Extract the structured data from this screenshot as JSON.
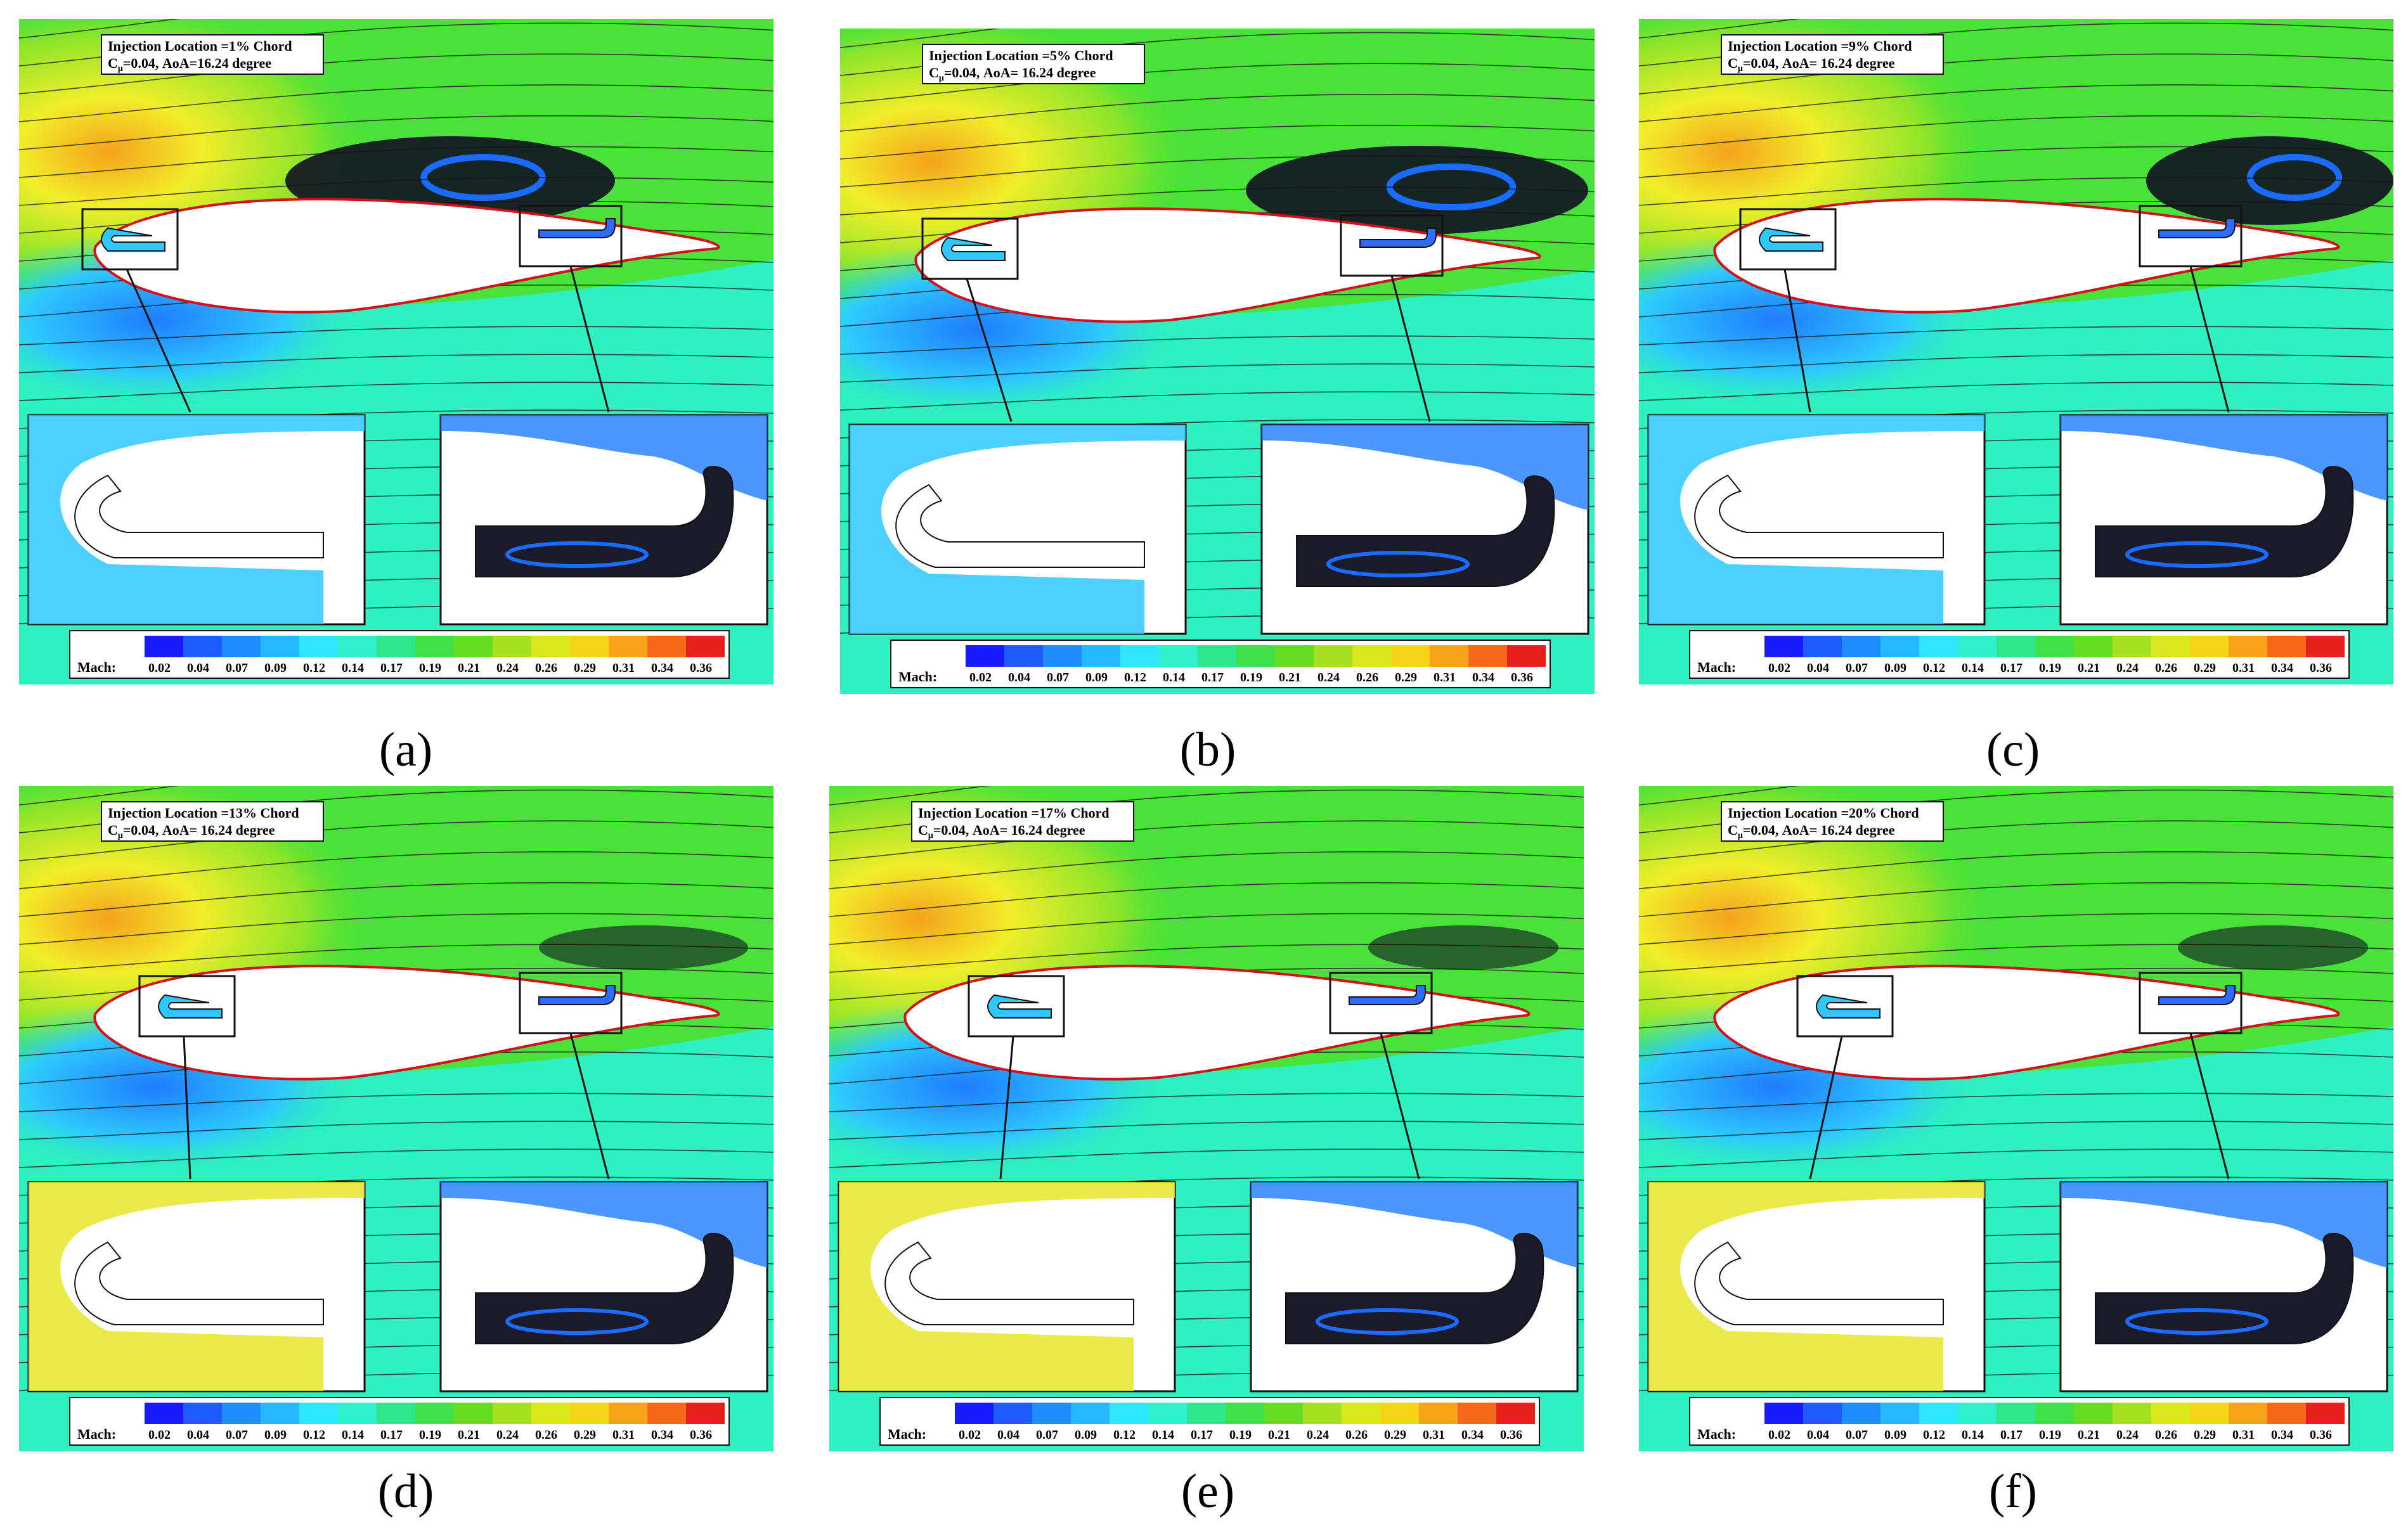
{
  "panels": [
    {
      "id": "a",
      "label": "(a)",
      "title": "Injection Location =1% Chord",
      "subtitle_prefix": "C",
      "subtitle_sub": "μ",
      "subtitle_rest": "=0.04, AoA=16.24 degree",
      "tag": "a"
    },
    {
      "id": "b",
      "label": "(b)",
      "title": "Injection Location =5% Chord",
      "subtitle_prefix": "C",
      "subtitle_sub": "μ",
      "subtitle_rest": "=0.04, AoA= 16.24 degree",
      "tag": "b"
    },
    {
      "id": "c",
      "label": "(c)",
      "title": "Injection Location =9% Chord",
      "subtitle_prefix": "C",
      "subtitle_sub": "μ",
      "subtitle_rest": "=0.04, AoA= 16.24 degree",
      "tag": "c"
    },
    {
      "id": "d",
      "label": "(d)",
      "title": "Injection Location =13% Chord",
      "subtitle_prefix": "C",
      "subtitle_sub": "μ",
      "subtitle_rest": "=0.04, AoA= 16.24 degree",
      "tag": "d"
    },
    {
      "id": "e",
      "label": "(e)",
      "title": "Injection Location =17% Chord",
      "subtitle_prefix": "C",
      "subtitle_sub": "μ",
      "subtitle_rest": "=0.04, AoA= 16.24 degree",
      "tag": "e"
    },
    {
      "id": "f",
      "label": "(f)",
      "title": "Injection Location =20% Chord",
      "subtitle_prefix": "C",
      "subtitle_sub": "μ",
      "subtitle_rest": "=0.04, AoA= 16.24 degree",
      "tag": "f"
    }
  ],
  "legend": {
    "label": "Mach:",
    "ticks": [
      "0.02",
      "0.04",
      "0.07",
      "0.09",
      "0.12",
      "0.14",
      "0.17",
      "0.19",
      "0.21",
      "0.24",
      "0.26",
      "0.29",
      "0.31",
      "0.34",
      "0.36"
    ],
    "colors": [
      "#1a1aff",
      "#1f5cff",
      "#1f8cff",
      "#26b8ff",
      "#2ee6ff",
      "#2ff0c8",
      "#2ee68c",
      "#3fe04a",
      "#66dd22",
      "#a6e020",
      "#d8e81c",
      "#f5d41a",
      "#f8a31a",
      "#f56a1a",
      "#e8201c"
    ]
  },
  "colors": {
    "background_green": "#33dd44",
    "freestream_green": "#4ae23a",
    "lower_cyan": "#2ef0c0",
    "suction_yellow": "#f2ee2a",
    "separation_dark": "#111122",
    "airfoil_outline": "#d4101c"
  }
}
